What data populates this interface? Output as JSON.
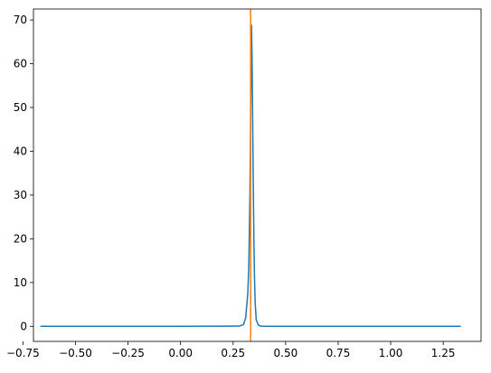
{
  "chart_data": {
    "type": "line",
    "title": "",
    "xlabel": "",
    "ylabel": "",
    "xlim": [
      -0.7,
      1.43
    ],
    "ylim": [
      -3.45,
      72.5
    ],
    "grid": false,
    "legend": "none",
    "x_ticks": [
      -0.75,
      -0.5,
      -0.25,
      0.0,
      0.25,
      0.5,
      0.75,
      1.0,
      1.25
    ],
    "x_tick_labels": [
      "−0.75",
      "−0.50",
      "−0.25",
      "0.00",
      "0.25",
      "0.50",
      "0.75",
      "1.00",
      "1.25"
    ],
    "y_ticks": [
      0,
      10,
      20,
      30,
      40,
      50,
      60,
      70
    ],
    "y_tick_labels": [
      "0",
      "10",
      "20",
      "30",
      "40",
      "50",
      "60",
      "70"
    ],
    "series": [
      {
        "color": "#1f77b4",
        "x": [
          -0.667,
          0.0,
          0.28,
          0.3,
          0.31,
          0.32,
          0.325,
          0.33,
          0.335,
          0.3375,
          0.34,
          0.343,
          0.346,
          0.349,
          0.352,
          0.355,
          0.36,
          0.37,
          0.38,
          0.4,
          0.6,
          1.333
        ],
        "y": [
          0,
          0,
          0.05,
          0.4,
          2.0,
          7.5,
          14.0,
          30.0,
          55.0,
          68.8,
          62.0,
          48.0,
          33.0,
          20.0,
          11.0,
          5.5,
          1.5,
          0.3,
          0.05,
          0,
          0,
          0
        ]
      }
    ],
    "vline": {
      "x": 0.3333,
      "color": "#ff7f0e"
    }
  }
}
